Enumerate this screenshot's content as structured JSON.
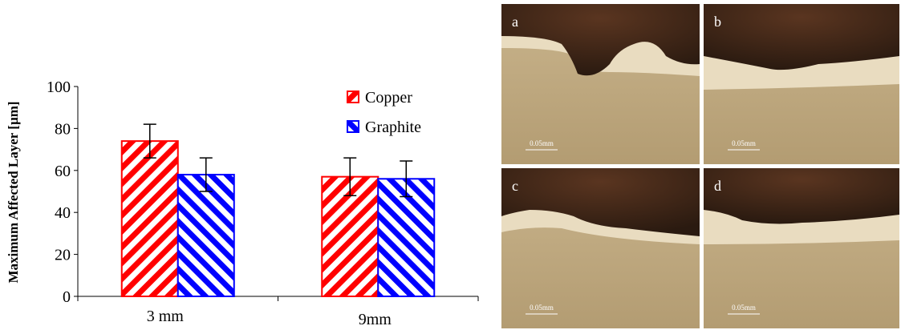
{
  "chart_data": {
    "type": "bar",
    "y_label": "Maximum Affected Layer [µm]",
    "categories": [
      "3 mm",
      "9mm"
    ],
    "series": [
      {
        "name": "Copper",
        "color": "#ff0000",
        "values": [
          74,
          57
        ],
        "errors": [
          8,
          9
        ]
      },
      {
        "name": "Graphite",
        "color": "#0000ff",
        "values": [
          58,
          56
        ],
        "errors": [
          8,
          8.5
        ]
      }
    ],
    "ylim": [
      0,
      100
    ],
    "yticks": [
      0,
      20,
      40,
      60,
      80,
      100
    ],
    "hatch": true,
    "legend": "upper right"
  },
  "panels": [
    {
      "label": "a",
      "scale": "0.05mm"
    },
    {
      "label": "b",
      "scale": "0.05mm"
    },
    {
      "label": "c",
      "scale": "0.05mm"
    },
    {
      "label": "d",
      "scale": "0.05mm"
    }
  ]
}
